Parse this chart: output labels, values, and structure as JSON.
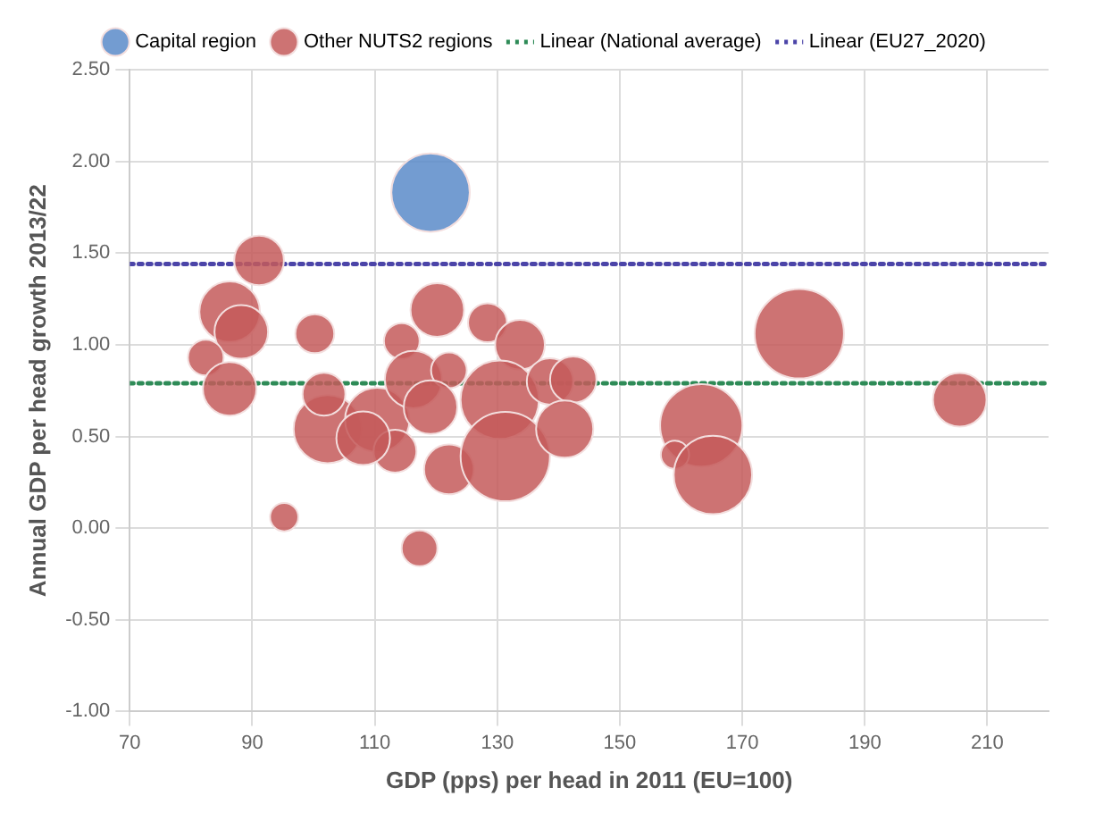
{
  "chart_data": {
    "type": "bubble",
    "xlabel": "GDP (pps) per head in 2011 (EU=100)",
    "ylabel": "Annual GDP per head growth 2013/22",
    "xlim": [
      70,
      220
    ],
    "xticks": [
      70,
      90,
      110,
      130,
      150,
      170,
      190,
      210
    ],
    "ylim": [
      -1,
      2.5
    ],
    "yticks": [
      {
        "value": -1,
        "label": "-1.00"
      },
      {
        "value": -0.5,
        "label": "-0.50"
      },
      {
        "value": 0,
        "label": "0.00"
      },
      {
        "value": 0.5,
        "label": "0.50"
      },
      {
        "value": 1,
        "label": "1.00"
      },
      {
        "value": 1.5,
        "label": "1.50"
      },
      {
        "value": 2,
        "label": "2.00"
      },
      {
        "value": 2.5,
        "label": "2.50"
      }
    ],
    "grid": true,
    "legend": "top",
    "series": [
      {
        "name": "Capital region",
        "color": "#5b8bc9",
        "x": [
          119.1
        ],
        "values": [
          1.83
        ],
        "sizes": [
          0.77
        ]
      },
      {
        "name": "Other NUTS2 regions",
        "color": "#c45a5a",
        "x": [
          91.1,
          86.3,
          88.2,
          82.4,
          86.3,
          100.2,
          95.2,
          102.3,
          101.7,
          110.4,
          113.3,
          108.1,
          114.4,
          116.3,
          120.2,
          122.1,
          119.1,
          122.1,
          128.4,
          133.7,
          130.4,
          131.3,
          117.3,
          138.6,
          142.4,
          141,
          163.3,
          159,
          165.2,
          179.3,
          205.5
        ],
        "values": [
          1.46,
          1.18,
          1.07,
          0.93,
          0.76,
          1.06,
          0.06,
          0.54,
          0.73,
          0.59,
          0.42,
          0.49,
          1.02,
          0.81,
          1.19,
          0.86,
          0.66,
          0.32,
          1.12,
          1,
          0.7,
          0.39,
          -0.11,
          0.8,
          0.81,
          0.54,
          0.56,
          0.4,
          0.29,
          1.06,
          0.7
        ],
        "sizes": [
          0.31,
          0.46,
          0.36,
          0.16,
          0.36,
          0.19,
          0.1,
          0.58,
          0.23,
          0.52,
          0.23,
          0.36,
          0.16,
          0.41,
          0.36,
          0.16,
          0.36,
          0.31,
          0.19,
          0.31,
          0.77,
          1,
          0.16,
          0.27,
          0.27,
          0.41,
          0.85,
          0.1,
          0.77,
          1,
          0.36
        ]
      }
    ],
    "ref_lines": [
      {
        "axis": "y",
        "value": 0.79,
        "label": "Linear (National average)",
        "color": "#2e8b57",
        "line_style": "dotted"
      },
      {
        "axis": "y",
        "value": 1.44,
        "label": "Linear (EU27_2020)",
        "color": "#4b44a8",
        "line_style": "dotted"
      }
    ]
  }
}
